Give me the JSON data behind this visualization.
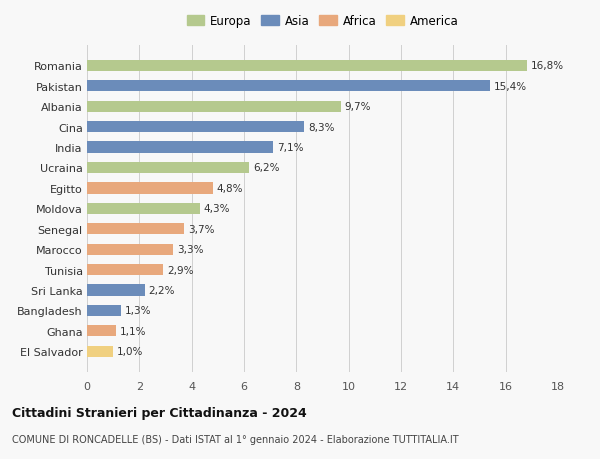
{
  "categories": [
    "Romania",
    "Pakistan",
    "Albania",
    "Cina",
    "India",
    "Ucraina",
    "Egitto",
    "Moldova",
    "Senegal",
    "Marocco",
    "Tunisia",
    "Sri Lanka",
    "Bangladesh",
    "Ghana",
    "El Salvador"
  ],
  "values": [
    16.8,
    15.4,
    9.7,
    8.3,
    7.1,
    6.2,
    4.8,
    4.3,
    3.7,
    3.3,
    2.9,
    2.2,
    1.3,
    1.1,
    1.0
  ],
  "labels": [
    "16,8%",
    "15,4%",
    "9,7%",
    "8,3%",
    "7,1%",
    "6,2%",
    "4,8%",
    "4,3%",
    "3,7%",
    "3,3%",
    "2,9%",
    "2,2%",
    "1,3%",
    "1,1%",
    "1,0%"
  ],
  "continents": [
    "Europa",
    "Asia",
    "Europa",
    "Asia",
    "Asia",
    "Europa",
    "Africa",
    "Europa",
    "Africa",
    "Africa",
    "Africa",
    "Asia",
    "Asia",
    "Africa",
    "America"
  ],
  "colors": {
    "Europa": "#b5c98e",
    "Asia": "#6b8cba",
    "Africa": "#e8a87c",
    "America": "#f0d080"
  },
  "legend_order": [
    "Europa",
    "Asia",
    "Africa",
    "America"
  ],
  "xlim": [
    0,
    18
  ],
  "xticks": [
    0,
    2,
    4,
    6,
    8,
    10,
    12,
    14,
    16,
    18
  ],
  "title": "Cittadini Stranieri per Cittadinanza - 2024",
  "subtitle": "COMUNE DI RONCADELLE (BS) - Dati ISTAT al 1° gennaio 2024 - Elaborazione TUTTITALIA.IT",
  "bg_color": "#f8f8f8",
  "grid_color": "#d0d0d0",
  "bar_height": 0.55
}
